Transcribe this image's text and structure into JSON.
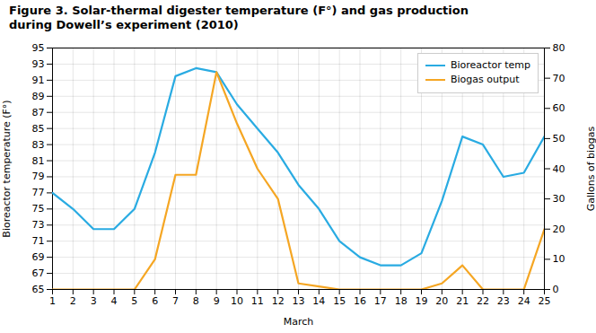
{
  "chart_data": {
    "type": "line",
    "title": "Figure 3. Solar-thermal digester temperature (F°) and gas production\nduring Dowell’s experiment (2010)",
    "xlabel": "March",
    "ylabel": "Bioreactor temperature (F°)",
    "y2label": "Gallons of biogas",
    "x": [
      1,
      2,
      3,
      4,
      5,
      6,
      7,
      8,
      9,
      10,
      11,
      12,
      13,
      14,
      15,
      16,
      17,
      18,
      19,
      20,
      21,
      22,
      23,
      24,
      25
    ],
    "series": [
      {
        "name": "Bioreactor temp",
        "color": "#29ABE2",
        "values": [
          77,
          75,
          72.5,
          72.5,
          75,
          82,
          91.5,
          92.5,
          92,
          88,
          85,
          82,
          78,
          75,
          71,
          69,
          68,
          68,
          69.5,
          76,
          84,
          83,
          79,
          79.5,
          84
        ]
      },
      {
        "name": "Biogas output",
        "color": "#F5A623",
        "axis": "y2",
        "values": [
          0,
          0,
          0,
          0,
          0,
          10,
          38,
          38,
          72,
          55,
          40,
          30,
          2,
          1,
          0,
          0,
          0,
          0,
          0,
          2,
          8,
          0,
          0,
          0,
          20
        ]
      }
    ],
    "xlim": [
      1,
      25
    ],
    "xticks": [
      1,
      2,
      3,
      4,
      5,
      6,
      7,
      8,
      9,
      10,
      11,
      12,
      13,
      14,
      15,
      16,
      17,
      18,
      19,
      20,
      21,
      22,
      23,
      24,
      25
    ],
    "ylim": [
      65,
      95
    ],
    "yticks": [
      65,
      67,
      69,
      71,
      73,
      75,
      77,
      79,
      81,
      83,
      85,
      87,
      89,
      91,
      93,
      95
    ],
    "y2lim": [
      0,
      80
    ],
    "y2ticks": [
      0,
      10,
      20,
      30,
      40,
      50,
      60,
      70,
      80
    ],
    "grid": true,
    "legend": "upper right"
  }
}
